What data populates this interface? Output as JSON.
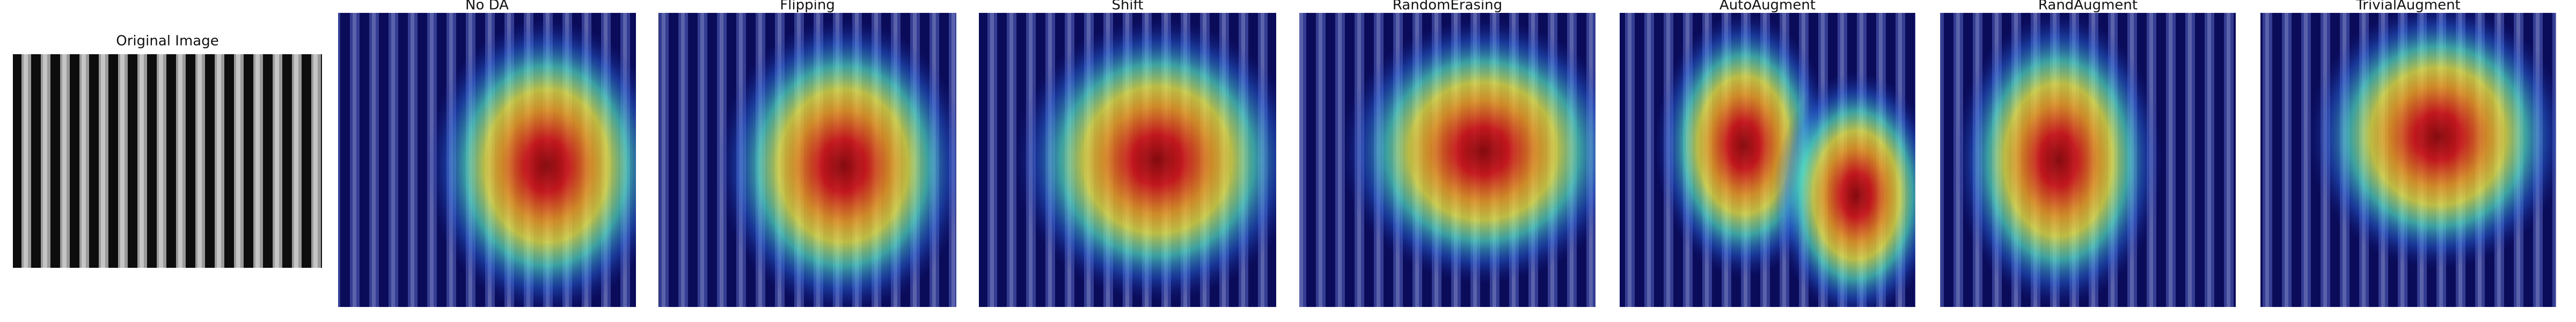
{
  "panels": [
    {
      "title": "Original Image"
    },
    {
      "title": "No DA"
    },
    {
      "title": "Flipping"
    },
    {
      "title": "Shift"
    },
    {
      "title": "RandomErasing"
    },
    {
      "title": "AutoAugment"
    },
    {
      "title": "RandAugment"
    },
    {
      "title": "TrivialAugment"
    }
  ]
}
